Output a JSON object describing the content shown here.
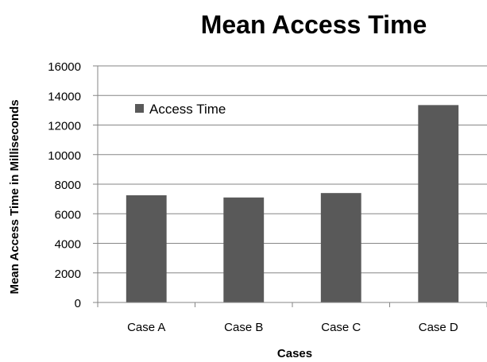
{
  "chart_data": {
    "type": "bar",
    "title": "Mean Access Time",
    "xlabel": "Cases",
    "ylabel": "Mean Access Time in Milliseconds",
    "categories": [
      "Case A",
      "Case B",
      "Case C",
      "Case D"
    ],
    "series": [
      {
        "name": "Access Time",
        "values": [
          7250,
          7100,
          7400,
          13350
        ]
      }
    ],
    "ylim": [
      0,
      16000
    ],
    "yticks": [
      0,
      2000,
      4000,
      6000,
      8000,
      10000,
      12000,
      14000,
      16000
    ],
    "grid": true,
    "legend_position": "top-left",
    "bar_color": "#595959"
  }
}
